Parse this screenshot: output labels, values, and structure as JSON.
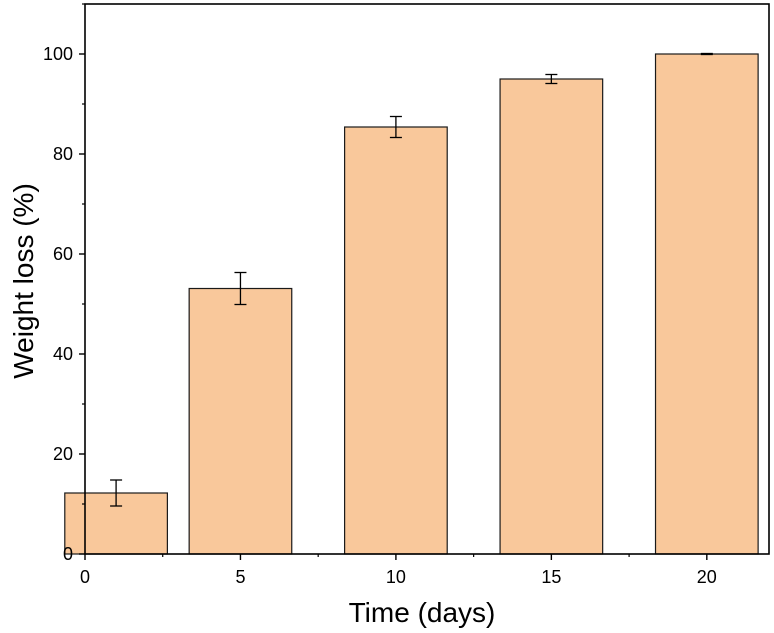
{
  "chart_data": {
    "type": "bar",
    "title": "",
    "xlabel": "Time (days)",
    "ylabel": "Weight loss (%)",
    "x": [
      1,
      5,
      10,
      15,
      20
    ],
    "values": [
      12.2,
      53.1,
      85.4,
      95.0,
      100.0
    ],
    "errors": [
      2.6,
      3.2,
      2.1,
      0.9,
      0.1
    ],
    "bar_width": 3.3,
    "xlim": [
      0,
      22
    ],
    "ylim": [
      0,
      110
    ],
    "xticks": [
      0,
      5,
      10,
      15,
      20
    ],
    "yticks": [
      0,
      20,
      40,
      60,
      80,
      100
    ],
    "xtick_labels": [
      "0",
      "5",
      "10",
      "15",
      "20"
    ],
    "ytick_labels": [
      "0",
      "20",
      "40",
      "60",
      "80",
      "100"
    ],
    "grid": false,
    "colors": {
      "bar_fill": "#f9c89b",
      "bar_stroke": "#1a1a1a",
      "axis": "#000000"
    }
  }
}
